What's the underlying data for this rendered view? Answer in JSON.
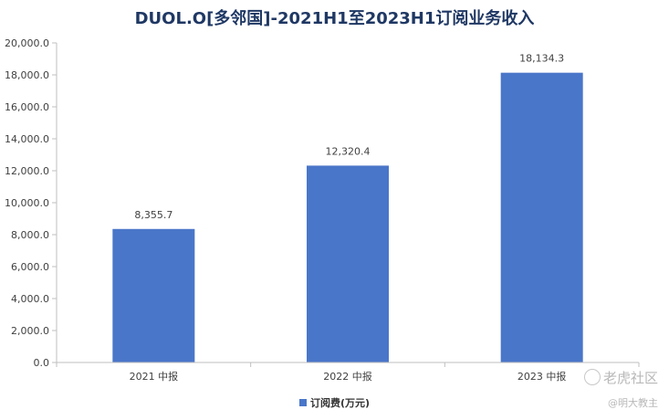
{
  "chart_data": {
    "type": "bar",
    "title": "DUOL.O[多邻国]-2021H1至2023H1订阅业务收入",
    "categories": [
      "2021 中报",
      "2022 中报",
      "2023 中报"
    ],
    "series": [
      {
        "name": "订阅费(万元)",
        "values": [
          8355.7,
          12320.4,
          18134.3
        ],
        "color": "#4a76c9"
      }
    ],
    "value_labels": [
      "8,355.7",
      "12,320.4",
      "18,134.3"
    ],
    "yticks": [
      "0.0",
      "2,000.0",
      "4,000.0",
      "6,000.0",
      "8,000.0",
      "10,000.0",
      "12,000.0",
      "14,000.0",
      "16,000.0",
      "18,000.0",
      "20,000.0"
    ],
    "ylim": [
      0,
      20000
    ],
    "xlabel": "",
    "ylabel": "",
    "grid": false,
    "legend_position": "bottom"
  },
  "watermark": {
    "line1": "老虎社区",
    "line2": "@明大教主"
  }
}
